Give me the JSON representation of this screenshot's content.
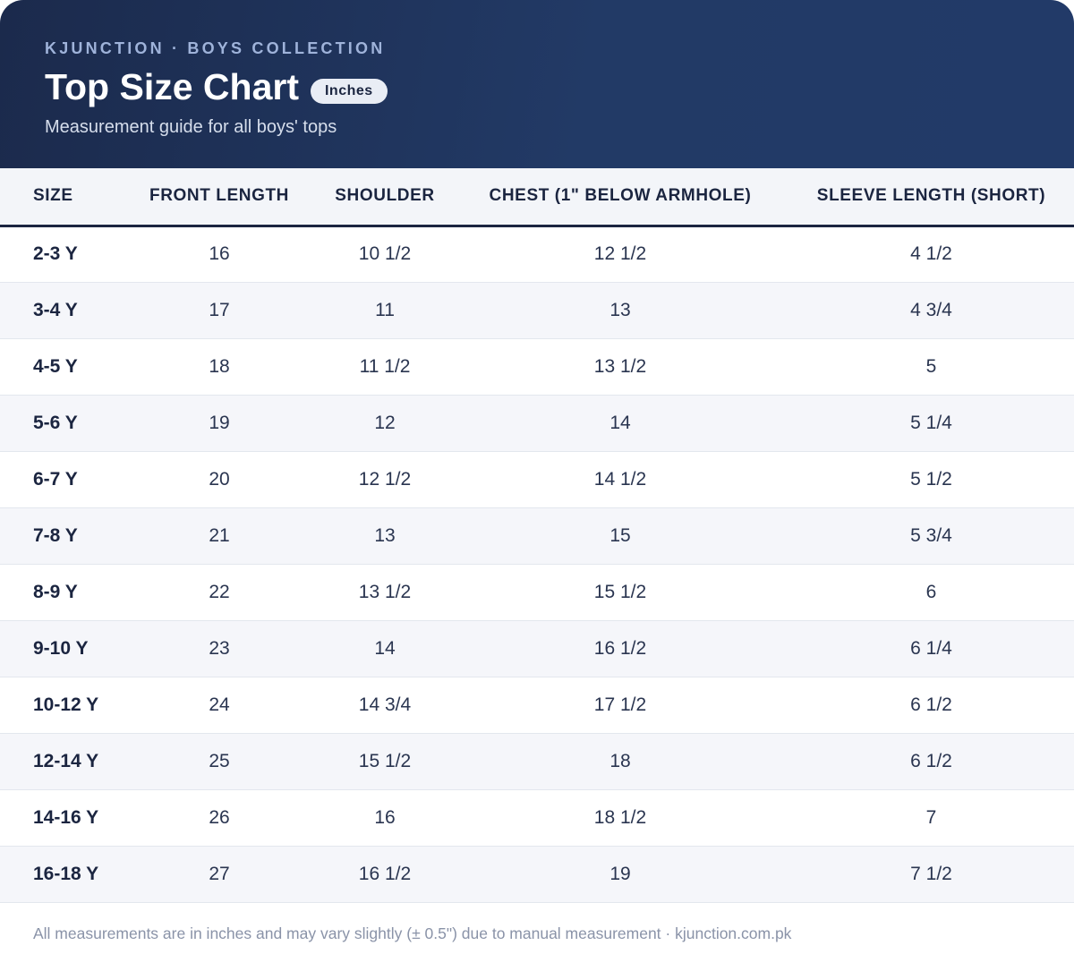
{
  "header": {
    "eyebrow": "KJUNCTION · BOYS COLLECTION",
    "title": "Top Size Chart",
    "badge": "Inches",
    "subtitle": "Measurement guide for all boys' tops"
  },
  "table": {
    "columns": [
      "SIZE",
      "FRONT LENGTH",
      "SHOULDER",
      "CHEST (1\" BELOW ARMHOLE)",
      "SLEEVE LENGTH (SHORT)"
    ],
    "rows": [
      [
        "2-3 Y",
        "16",
        "10 1/2",
        "12 1/2",
        "4 1/2"
      ],
      [
        "3-4 Y",
        "17",
        "11",
        "13",
        "4 3/4"
      ],
      [
        "4-5 Y",
        "18",
        "11 1/2",
        "13 1/2",
        "5"
      ],
      [
        "5-6 Y",
        "19",
        "12",
        "14",
        "5 1/4"
      ],
      [
        "6-7 Y",
        "20",
        "12 1/2",
        "14 1/2",
        "5 1/2"
      ],
      [
        "7-8 Y",
        "21",
        "13",
        "15",
        "5 3/4"
      ],
      [
        "8-9 Y",
        "22",
        "13 1/2",
        "15 1/2",
        "6"
      ],
      [
        "9-10 Y",
        "23",
        "14",
        "16 1/2",
        "6 1/4"
      ],
      [
        "10-12 Y",
        "24",
        "14 3/4",
        "17 1/2",
        "6 1/2"
      ],
      [
        "12-14 Y",
        "25",
        "15 1/2",
        "18",
        "6 1/2"
      ],
      [
        "14-16 Y",
        "26",
        "16",
        "18 1/2",
        "7"
      ],
      [
        "16-18 Y",
        "27",
        "16 1/2",
        "19",
        "7 1/2"
      ]
    ]
  },
  "footer": {
    "note": "All measurements are in inches and may vary slightly (± 0.5\") due to manual measurement · kjunction.com.pk"
  },
  "colors": {
    "header_dark": "#1b2a4c",
    "header_light": "#223a66",
    "accent_text": "#9fb3da",
    "row_stripe": "#f5f6fa"
  }
}
